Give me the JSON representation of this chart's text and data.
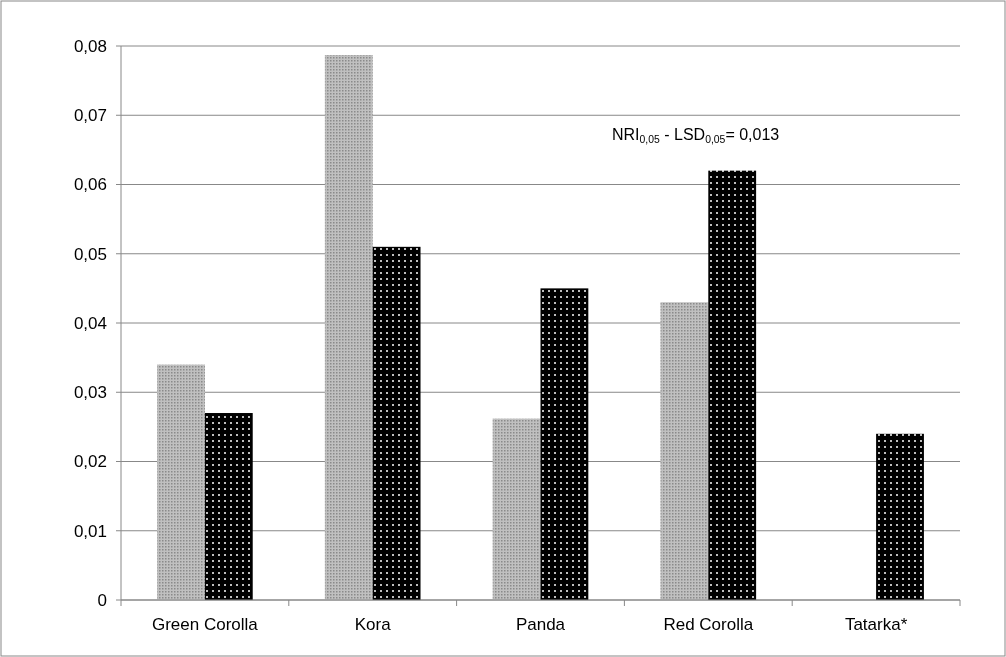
{
  "chart_data": {
    "type": "bar",
    "categories": [
      "Green Corolla",
      "Kora",
      "Panda",
      "Red Corolla",
      "Tatarka*"
    ],
    "series": [
      {
        "color": "#c0c0c0",
        "values": [
          0.034,
          0.0787,
          0.0262,
          0.043,
          null
        ]
      },
      {
        "color": "#000000",
        "values": [
          0.027,
          0.051,
          0.045,
          0.062,
          0.024
        ]
      }
    ],
    "ylim": [
      0,
      0.08
    ],
    "yticks": [
      0,
      {
        "value": 0.01,
        "label": "0,01"
      },
      {
        "value": 0.02,
        "label": "0,02"
      },
      {
        "value": 0.03,
        "label": "0,03"
      },
      {
        "value": 0.04,
        "label": "0,04"
      },
      {
        "value": 0.05,
        "label": "0,05"
      },
      {
        "value": 0.06,
        "label": "0,06"
      },
      {
        "value": 0.07,
        "label": "0,07"
      },
      {
        "value": 0.08,
        "label": "0,08"
      }
    ],
    "grid": "y",
    "annotations": [
      "NRI$_{0,05}$ - LSD$_{0,05}$= 0,013"
    ]
  }
}
